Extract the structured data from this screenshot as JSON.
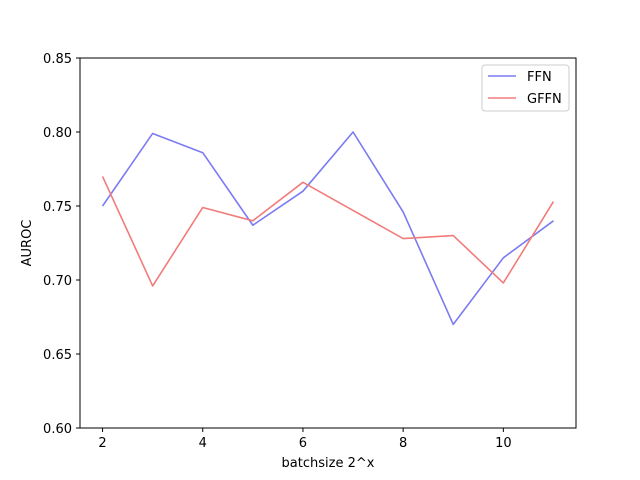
{
  "chart_data": {
    "type": "line",
    "title": "",
    "xlabel": "batchsize 2^x",
    "ylabel": "AUROC",
    "xlim": [
      1.55,
      11.45
    ],
    "ylim": [
      0.6,
      0.85
    ],
    "x": [
      2,
      3,
      4,
      5,
      6,
      7,
      8,
      9,
      10,
      11
    ],
    "xticks": [
      2,
      4,
      6,
      8,
      10
    ],
    "xtick_labels": [
      "2",
      "4",
      "6",
      "8",
      "10"
    ],
    "yticks": [
      0.6,
      0.65,
      0.7,
      0.75,
      0.8,
      0.85
    ],
    "ytick_labels": [
      "0.60",
      "0.65",
      "0.70",
      "0.75",
      "0.80",
      "0.85"
    ],
    "grid": false,
    "legend_position": "top-right",
    "series": [
      {
        "name": "FFN",
        "color": "#7b7bf2",
        "values": [
          0.75,
          0.799,
          0.786,
          0.737,
          0.76,
          0.8,
          0.746,
          0.67,
          0.715,
          0.74
        ]
      },
      {
        "name": "GFFN",
        "color": "#f27b7b",
        "values": [
          0.77,
          0.696,
          0.749,
          0.74,
          0.766,
          0.747,
          0.728,
          0.73,
          0.698,
          0.753
        ]
      }
    ]
  }
}
